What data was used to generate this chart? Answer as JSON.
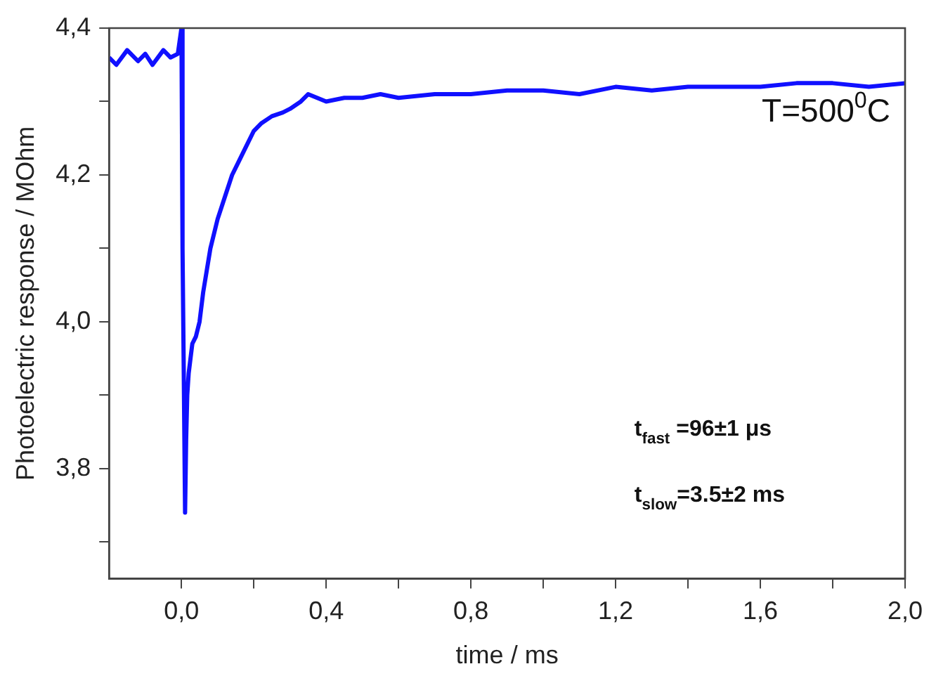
{
  "chart_data": {
    "type": "line",
    "xlabel": "time / ms",
    "ylabel": "Photoelectric response / MOhm",
    "x": [
      -0.2,
      -0.18,
      -0.15,
      -0.12,
      -0.1,
      -0.08,
      -0.05,
      -0.03,
      -0.01,
      0.0,
      0.003,
      0.006,
      0.01,
      0.013,
      0.016,
      0.02,
      0.025,
      0.03,
      0.04,
      0.05,
      0.06,
      0.07,
      0.08,
      0.1,
      0.12,
      0.14,
      0.16,
      0.18,
      0.2,
      0.22,
      0.25,
      0.28,
      0.3,
      0.33,
      0.35,
      0.4,
      0.45,
      0.5,
      0.55,
      0.6,
      0.7,
      0.8,
      0.9,
      1.0,
      1.1,
      1.2,
      1.3,
      1.4,
      1.5,
      1.6,
      1.7,
      1.8,
      1.9,
      2.0
    ],
    "series": [
      {
        "color": "#1010ff",
        "values": [
          4.36,
          4.35,
          4.37,
          4.355,
          4.365,
          4.35,
          4.37,
          4.36,
          4.365,
          4.4,
          4.1,
          3.95,
          3.74,
          3.84,
          3.9,
          3.93,
          3.95,
          3.97,
          3.98,
          4.0,
          4.04,
          4.07,
          4.1,
          4.14,
          4.17,
          4.2,
          4.22,
          4.24,
          4.26,
          4.27,
          4.28,
          4.285,
          4.29,
          4.3,
          4.31,
          4.3,
          4.305,
          4.305,
          4.31,
          4.305,
          4.31,
          4.31,
          4.315,
          4.315,
          4.31,
          4.32,
          4.315,
          4.32,
          4.32,
          4.32,
          4.325,
          4.325,
          4.32,
          4.325
        ]
      }
    ],
    "xlim": [
      -0.2,
      2.0
    ],
    "xticks": [
      {
        "value": 0,
        "label": "0,0"
      },
      {
        "value": 0.2,
        "label": null
      },
      {
        "value": 0.4,
        "label": "0,4"
      },
      {
        "value": 0.6,
        "label": null
      },
      {
        "value": 0.8,
        "label": "0,8"
      },
      {
        "value": 1.0,
        "label": null
      },
      {
        "value": 1.2,
        "label": "1,2"
      },
      {
        "value": 1.4,
        "label": null
      },
      {
        "value": 1.6,
        "label": "1,6"
      },
      {
        "value": 1.8,
        "label": null
      },
      {
        "value": 2.0,
        "label": "2,0"
      }
    ],
    "ylim": [
      3.65,
      4.4
    ],
    "yticks": [
      {
        "value": 3.7,
        "label": null
      },
      {
        "value": 3.8,
        "label": "3,8"
      },
      {
        "value": 3.9,
        "label": null
      },
      {
        "value": 4.0,
        "label": "4,0"
      },
      {
        "value": 4.1,
        "label": null
      },
      {
        "value": 4.2,
        "label": "4,2"
      },
      {
        "value": 4.3,
        "label": null
      },
      {
        "value": 4.4,
        "label": "4,4"
      }
    ],
    "annotations": [
      "T=500$^{0}$C",
      "t$_{fast}$ =96±1 μs",
      "t$_{slow}$=3.5±2 ms"
    ],
    "grid": false,
    "legend": false,
    "marker": "none",
    "line_style": "solid"
  }
}
